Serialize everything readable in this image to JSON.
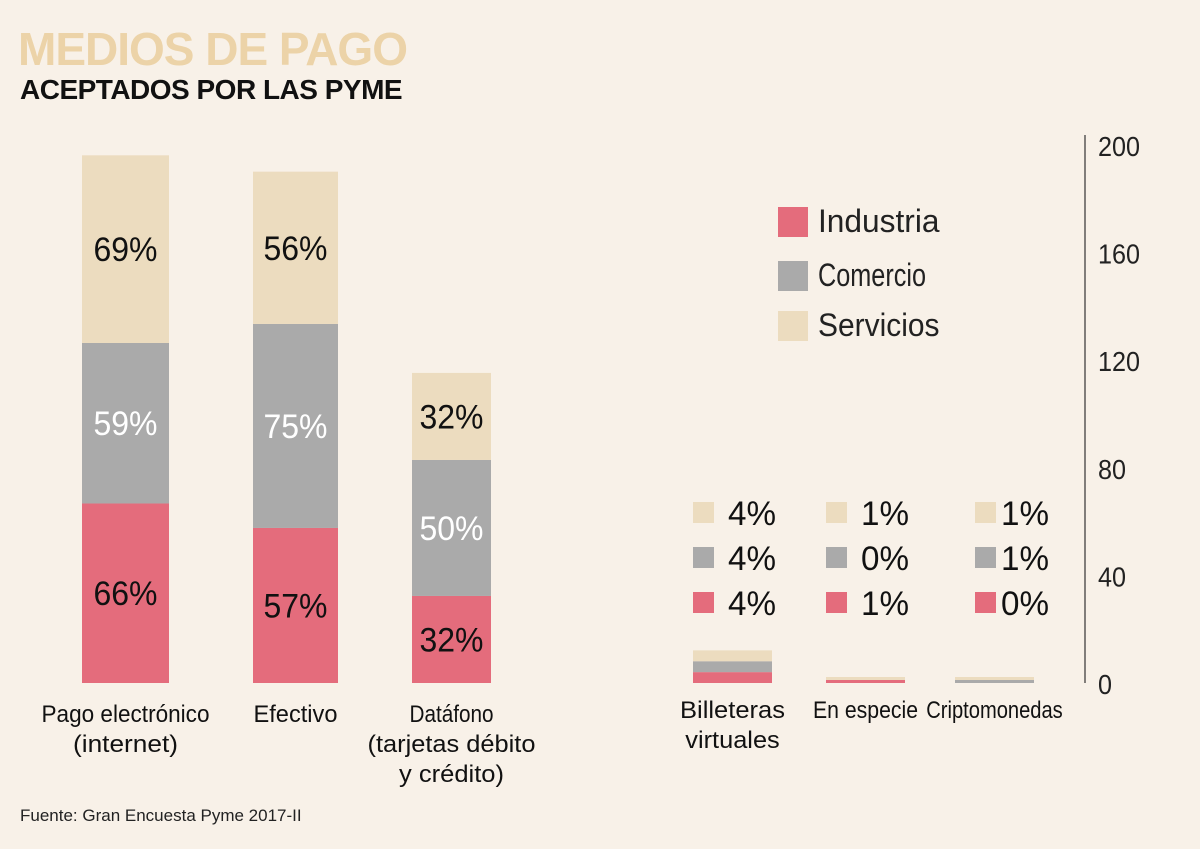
{
  "title": "MEDIOS DE PAGO",
  "subtitle": "ACEPTADOS POR LAS PYME",
  "source": "Fuente: Gran Encuesta Pyme 2017-II",
  "colors": {
    "Industria": "#e46c7c",
    "Comercio": "#aaaaaa",
    "Servicios": "#ecdcbf",
    "background": "#f8f1e8",
    "title": "#ecd3a8"
  },
  "chart_data": {
    "type": "bar",
    "stacked": true,
    "title": "MEDIOS DE PAGO ACEPTADOS POR LAS PYME",
    "categories": [
      "Pago electrónico (internet)",
      "Efectivo",
      "Datáfono (tarjetas débito y crédito)",
      "Billeteras virtuales",
      "En especie",
      "Criptomonedas"
    ],
    "category_lines": [
      [
        "Pago electrónico",
        "(internet)"
      ],
      [
        "Efectivo"
      ],
      [
        "Datáfono",
        "(tarjetas débito",
        "y crédito)"
      ],
      [
        "Billeteras",
        "virtuales"
      ],
      [
        "En especie"
      ],
      [
        "Criptomonedas"
      ]
    ],
    "series": [
      {
        "name": "Industria",
        "values": [
          66,
          57,
          32,
          4,
          1,
          0
        ]
      },
      {
        "name": "Comercio",
        "values": [
          59,
          75,
          50,
          4,
          0,
          1
        ]
      },
      {
        "name": "Servicios",
        "values": [
          69,
          56,
          32,
          4,
          1,
          1
        ]
      }
    ],
    "unit": "%",
    "ylim": [
      0,
      200
    ],
    "yticks": [
      0,
      40,
      80,
      120,
      160,
      200
    ],
    "legend": [
      "Industria",
      "Comercio",
      "Servicios"
    ],
    "legend_placement": "top-right",
    "xlabel": "",
    "ylabel": ""
  }
}
